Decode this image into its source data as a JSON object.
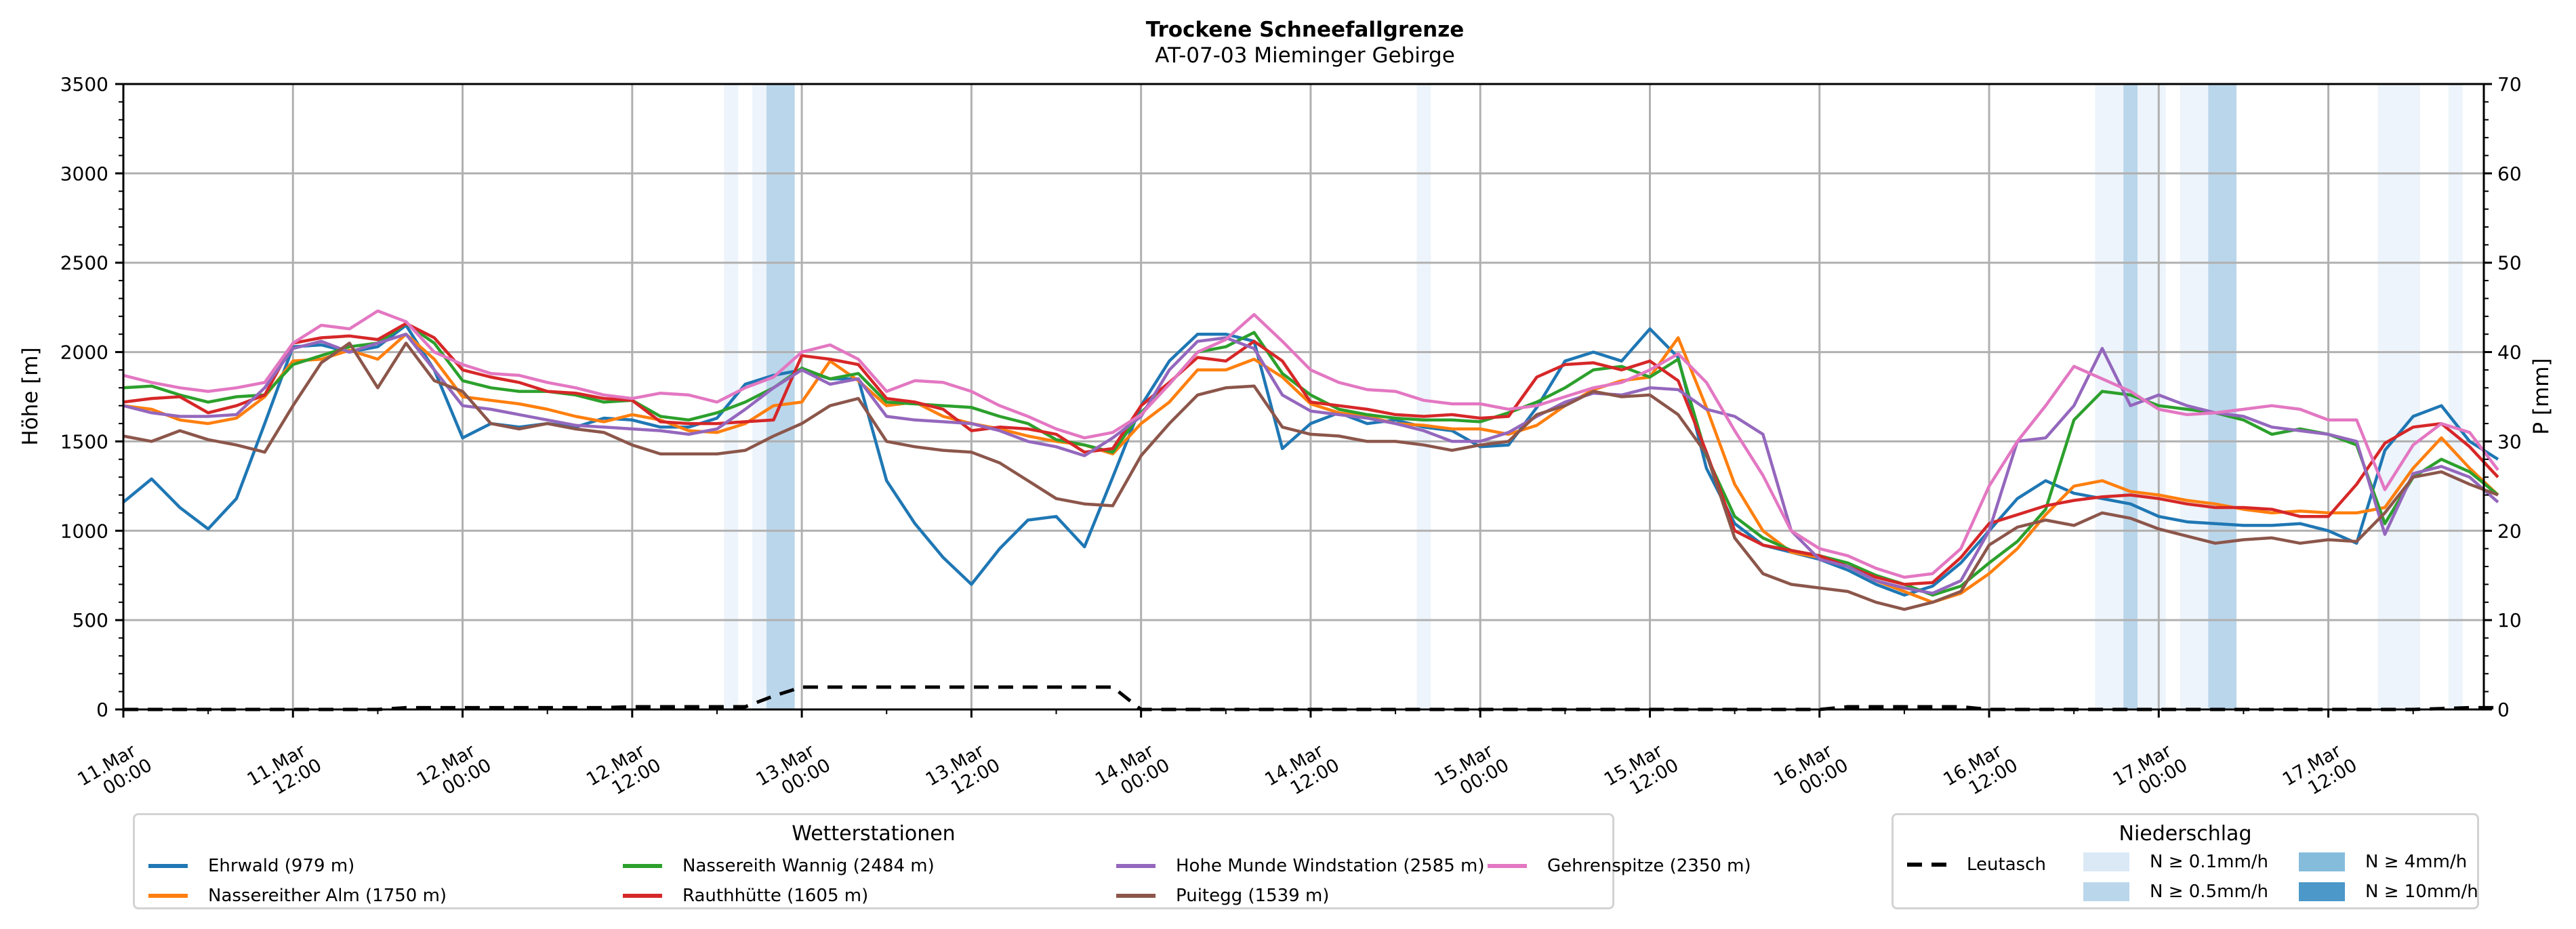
{
  "chart_data": {
    "type": "line",
    "title": "Trockene Schneefallgrenze",
    "subtitle": "AT-07-03 Mieminger Gebirge",
    "ylabel": "Höhe [m]",
    "ylabel_right": "P [mm]",
    "ylim": [
      0,
      3500
    ],
    "ylim_right": [
      0,
      70
    ],
    "yticks": [
      0,
      500,
      1000,
      1500,
      2000,
      2500,
      3000,
      3500
    ],
    "yticks_right": [
      0,
      10,
      20,
      30,
      40,
      50,
      60,
      70
    ],
    "grid": true,
    "x_unit": "hours since 11.Mar 00:00",
    "x_step_hours": 2,
    "xticks": [
      {
        "hour": 0,
        "label1": "11.Mar",
        "label2": "00:00"
      },
      {
        "hour": 12,
        "label1": "11.Mar",
        "label2": "12:00"
      },
      {
        "hour": 24,
        "label1": "12.Mar",
        "label2": "00:00"
      },
      {
        "hour": 36,
        "label1": "12.Mar",
        "label2": "12:00"
      },
      {
        "hour": 48,
        "label1": "13.Mar",
        "label2": "00:00"
      },
      {
        "hour": 60,
        "label1": "13.Mar",
        "label2": "12:00"
      },
      {
        "hour": 72,
        "label1": "14.Mar",
        "label2": "00:00"
      },
      {
        "hour": 84,
        "label1": "14.Mar",
        "label2": "12:00"
      },
      {
        "hour": 96,
        "label1": "15.Mar",
        "label2": "00:00"
      },
      {
        "hour": 108,
        "label1": "15.Mar",
        "label2": "12:00"
      },
      {
        "hour": 120,
        "label1": "16.Mar",
        "label2": "00:00"
      },
      {
        "hour": 132,
        "label1": "16.Mar",
        "label2": "12:00"
      },
      {
        "hour": 144,
        "label1": "17.Mar",
        "label2": "00:00"
      },
      {
        "hour": 156,
        "label1": "17.Mar",
        "label2": "12:00"
      }
    ],
    "xlim_hours": [
      0,
      167
    ],
    "series": [
      {
        "name": "Ehrwald (979 m)",
        "color": "#1f77b4",
        "values": [
          1160,
          1290,
          1130,
          1010,
          1180,
          1600,
          2030,
          2040,
          2000,
          2030,
          2150,
          1900,
          1520,
          1600,
          1580,
          1600,
          1580,
          1630,
          1620,
          1580,
          1580,
          1630,
          1820,
          1870,
          1900,
          1850,
          1850,
          1280,
          1040,
          850,
          700,
          900,
          1060,
          1080,
          910,
          1300,
          1700,
          1950,
          2100,
          2100,
          2060,
          1460,
          1600,
          1660,
          1600,
          1620,
          1580,
          1560,
          1470,
          1480,
          1690,
          1950,
          2000,
          1950,
          2130,
          1970,
          1350,
          1040,
          920,
          880,
          840,
          780,
          700,
          640,
          690,
          820,
          1000,
          1180,
          1280,
          1210,
          1180,
          1150,
          1080,
          1050,
          1040,
          1030,
          1030,
          1040,
          1000,
          930,
          1450,
          1640,
          1700,
          1500,
          1400
        ]
      },
      {
        "name": "Nassereither Alm (1750 m)",
        "color": "#ff7f0e",
        "values": [
          1700,
          1680,
          1620,
          1600,
          1630,
          1750,
          1950,
          1960,
          2010,
          1960,
          2100,
          1960,
          1750,
          1730,
          1710,
          1680,
          1640,
          1610,
          1650,
          1620,
          1560,
          1550,
          1600,
          1700,
          1720,
          1950,
          1840,
          1700,
          1720,
          1640,
          1600,
          1570,
          1530,
          1500,
          1480,
          1430,
          1600,
          1720,
          1900,
          1900,
          1960,
          1860,
          1710,
          1660,
          1640,
          1600,
          1590,
          1570,
          1570,
          1540,
          1590,
          1700,
          1790,
          1840,
          1860,
          2080,
          1690,
          1260,
          1000,
          880,
          850,
          800,
          720,
          660,
          600,
          650,
          760,
          900,
          1090,
          1250,
          1280,
          1220,
          1200,
          1170,
          1150,
          1120,
          1100,
          1110,
          1100,
          1100,
          1130,
          1350,
          1520,
          1350,
          1200
        ]
      },
      {
        "name": "Nassereith Wannig (2484 m)",
        "color": "#2ca02c",
        "values": [
          1800,
          1810,
          1760,
          1720,
          1750,
          1760,
          1930,
          1980,
          2030,
          2050,
          2160,
          2050,
          1840,
          1800,
          1780,
          1780,
          1760,
          1720,
          1730,
          1640,
          1620,
          1660,
          1720,
          1800,
          1910,
          1850,
          1880,
          1720,
          1710,
          1700,
          1690,
          1640,
          1600,
          1510,
          1480,
          1440,
          1660,
          1820,
          2000,
          2030,
          2110,
          1880,
          1760,
          1680,
          1650,
          1630,
          1620,
          1620,
          1610,
          1660,
          1720,
          1800,
          1900,
          1920,
          1860,
          1960,
          1420,
          1080,
          960,
          890,
          860,
          820,
          750,
          700,
          640,
          690,
          820,
          940,
          1120,
          1620,
          1780,
          1760,
          1700,
          1680,
          1660,
          1620,
          1540,
          1570,
          1540,
          1480,
          1040,
          1300,
          1400,
          1330,
          1200
        ]
      },
      {
        "name": "Rauthhütte (1605 m)",
        "color": "#d62728",
        "values": [
          1720,
          1740,
          1750,
          1660,
          1700,
          1760,
          2050,
          2080,
          2090,
          2070,
          2160,
          2080,
          1900,
          1860,
          1830,
          1780,
          1770,
          1740,
          1730,
          1610,
          1600,
          1600,
          1610,
          1620,
          1980,
          1960,
          1930,
          1740,
          1720,
          1680,
          1560,
          1580,
          1570,
          1540,
          1440,
          1460,
          1700,
          1830,
          1970,
          1950,
          2060,
          1950,
          1720,
          1700,
          1680,
          1650,
          1640,
          1650,
          1630,
          1640,
          1860,
          1930,
          1940,
          1900,
          1950,
          1840,
          1440,
          1000,
          920,
          890,
          860,
          800,
          740,
          700,
          710,
          850,
          1040,
          1090,
          1140,
          1170,
          1190,
          1200,
          1180,
          1150,
          1130,
          1130,
          1120,
          1080,
          1080,
          1260,
          1490,
          1580,
          1600,
          1470,
          1300
        ]
      },
      {
        "name": "Hohe Munde Windstation (2585 m)",
        "color": "#9467bd",
        "values": [
          1700,
          1660,
          1640,
          1640,
          1650,
          1800,
          2020,
          2060,
          2000,
          2050,
          2100,
          1900,
          1700,
          1680,
          1650,
          1620,
          1590,
          1580,
          1570,
          1560,
          1540,
          1570,
          1680,
          1800,
          1900,
          1820,
          1850,
          1640,
          1620,
          1610,
          1600,
          1560,
          1500,
          1470,
          1420,
          1520,
          1640,
          1900,
          2060,
          2080,
          2020,
          1760,
          1670,
          1650,
          1630,
          1600,
          1560,
          1500,
          1500,
          1550,
          1640,
          1720,
          1770,
          1760,
          1800,
          1790,
          1680,
          1640,
          1540,
          1000,
          840,
          800,
          720,
          680,
          650,
          720,
          1000,
          1500,
          1520,
          1700,
          2020,
          1700,
          1760,
          1700,
          1660,
          1640,
          1580,
          1560,
          1540,
          1500,
          980,
          1320,
          1360,
          1300,
          1160
        ]
      },
      {
        "name": "Puitegg (1539 m)",
        "color": "#8c564b",
        "values": [
          1530,
          1500,
          1560,
          1510,
          1480,
          1440,
          1700,
          1940,
          2050,
          1800,
          2050,
          1840,
          1780,
          1600,
          1570,
          1600,
          1570,
          1550,
          1480,
          1430,
          1430,
          1430,
          1450,
          1530,
          1600,
          1700,
          1740,
          1500,
          1470,
          1450,
          1440,
          1380,
          1280,
          1180,
          1150,
          1140,
          1420,
          1600,
          1760,
          1800,
          1810,
          1580,
          1540,
          1530,
          1500,
          1500,
          1480,
          1450,
          1480,
          1500,
          1650,
          1700,
          1780,
          1750,
          1760,
          1650,
          1430,
          960,
          760,
          700,
          680,
          660,
          600,
          560,
          600,
          660,
          920,
          1020,
          1060,
          1030,
          1100,
          1070,
          1010,
          970,
          930,
          950,
          960,
          930,
          950,
          940,
          1100,
          1300,
          1330,
          1260,
          1200
        ]
      },
      {
        "name": "Gehrenspitze (2350 m)",
        "color": "#e377c2",
        "values": [
          1870,
          1830,
          1800,
          1780,
          1800,
          1830,
          2050,
          2150,
          2130,
          2230,
          2170,
          2000,
          1930,
          1880,
          1870,
          1830,
          1800,
          1760,
          1740,
          1770,
          1760,
          1720,
          1800,
          1860,
          2000,
          2040,
          1960,
          1780,
          1840,
          1830,
          1780,
          1700,
          1640,
          1570,
          1520,
          1550,
          1650,
          1820,
          2000,
          2070,
          2210,
          2060,
          1900,
          1830,
          1790,
          1780,
          1730,
          1710,
          1710,
          1680,
          1700,
          1750,
          1800,
          1830,
          1900,
          1990,
          1830,
          1560,
          1310,
          1000,
          900,
          860,
          790,
          740,
          760,
          900,
          1250,
          1500,
          1700,
          1920,
          1850,
          1780,
          1680,
          1650,
          1660,
          1680,
          1700,
          1680,
          1620,
          1620,
          1230,
          1480,
          1600,
          1550,
          1340
        ]
      }
    ],
    "precip_series": {
      "name": "Leutasch",
      "style": "dashed",
      "color": "#000000",
      "values": [
        0,
        0,
        0,
        0,
        0,
        0,
        0,
        0,
        0,
        0,
        0.2,
        0.2,
        0.2,
        0.2,
        0.2,
        0.2,
        0.2,
        0.2,
        0.3,
        0.3,
        0.3,
        0.3,
        0.3,
        1.5,
        2.5,
        2.5,
        2.5,
        2.5,
        2.5,
        2.5,
        2.5,
        2.5,
        2.5,
        2.5,
        2.5,
        2.5,
        0,
        0,
        0,
        0,
        0,
        0,
        0,
        0,
        0,
        0,
        0,
        0,
        0,
        0,
        0,
        0,
        0,
        0,
        0,
        0,
        0,
        0,
        0,
        0,
        0,
        0.3,
        0.3,
        0.3,
        0.3,
        0.3,
        0,
        0,
        0,
        0,
        0,
        0,
        0,
        0,
        0,
        0,
        0,
        0,
        0,
        0,
        0,
        0,
        0.1,
        0.2,
        0.2
      ]
    },
    "precip_bands": [
      {
        "start_hour": 42.5,
        "end_hour": 43.5,
        "level": "N ≥ 0.1mm/h"
      },
      {
        "start_hour": 44.5,
        "end_hour": 45.5,
        "level": "N ≥ 0.1mm/h"
      },
      {
        "start_hour": 45.5,
        "end_hour": 47.5,
        "level": "N ≥ 0.5mm/h"
      },
      {
        "start_hour": 91.5,
        "end_hour": 92.5,
        "level": "N ≥ 0.1mm/h"
      },
      {
        "start_hour": 139.5,
        "end_hour": 141.5,
        "level": "N ≥ 0.1mm/h"
      },
      {
        "start_hour": 141.5,
        "end_hour": 142.5,
        "level": "N ≥ 0.5mm/h"
      },
      {
        "start_hour": 142.5,
        "end_hour": 144.5,
        "level": "N ≥ 0.1mm/h"
      },
      {
        "start_hour": 145.5,
        "end_hour": 147.5,
        "level": "N ≥ 0.1mm/h"
      },
      {
        "start_hour": 147.5,
        "end_hour": 149.5,
        "level": "N ≥ 0.5mm/h"
      },
      {
        "start_hour": 159.5,
        "end_hour": 162.5,
        "level": "N ≥ 0.1mm/h"
      },
      {
        "start_hour": 164.5,
        "end_hour": 165.5,
        "level": "N ≥ 0.1mm/h"
      }
    ],
    "legends": [
      {
        "title": "Wetterstationen",
        "placement": "bottom-left"
      },
      {
        "title": "Niederschlag",
        "placement": "bottom-right"
      }
    ]
  },
  "legend_stations": {
    "title": "Wetterstationen",
    "items": [
      "Ehrwald (979 m)",
      "Nassereither Alm (1750 m)",
      "Nassereith Wannig (2484 m)",
      "Rauthhütte (1605 m)",
      "Hohe Munde Windstation (2585 m)",
      "Puitegg (1539 m)",
      "Gehrenspitze (2350 m)"
    ]
  },
  "legend_precip": {
    "title": "Niederschlag",
    "line_label": "Leutasch",
    "levels": [
      {
        "label": "N ≥ 0.1mm/h",
        "color": "#dbe9f6"
      },
      {
        "label": "N ≥ 0.5mm/h",
        "color": "#bad6eb"
      },
      {
        "label": "N ≥ 4mm/h",
        "color": "#85bcdc"
      },
      {
        "label": "N ≥ 10mm/h",
        "color": "#4b98c9"
      }
    ]
  }
}
